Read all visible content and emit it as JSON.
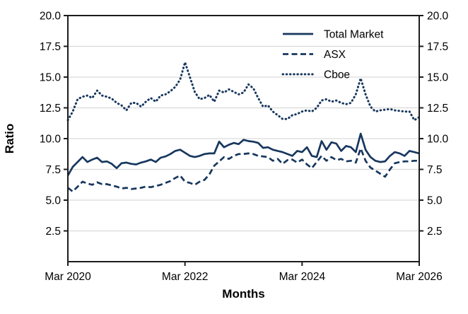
{
  "chart_data": {
    "type": "line",
    "title": "",
    "xlabel": "Months",
    "ylabel": "Ratio",
    "ylim": [
      0,
      20
    ],
    "x_range_months": [
      0,
      72
    ],
    "yticks": [
      2.5,
      5.0,
      7.5,
      10.0,
      12.5,
      15.0,
      17.5,
      20.0
    ],
    "ytick_labels": [
      "2.5",
      "5.0",
      "7.5",
      "10.0",
      "12.5",
      "15.0",
      "17.5",
      "20.0"
    ],
    "x_tick_positions": [
      0,
      24,
      48,
      72
    ],
    "x_tick_labels": [
      "Mar 2020",
      "Mar 2022",
      "Mar 2024",
      "Mar 2026"
    ],
    "grid": "horizontal",
    "legend_position": "upper-right-inside",
    "colors": {
      "line": "#17375e",
      "axis": "#1c1c1c",
      "grid": "#d9d9d9",
      "text": "#000000",
      "background": "#ffffff"
    },
    "series": [
      {
        "name": "Total Market",
        "style": "solid",
        "values": [
          7.0,
          7.7,
          8.1,
          8.5,
          8.1,
          8.3,
          8.45,
          8.1,
          8.15,
          7.95,
          7.6,
          8.0,
          8.05,
          7.95,
          7.9,
          8.05,
          8.15,
          8.3,
          8.1,
          8.45,
          8.55,
          8.75,
          9.0,
          9.1,
          8.85,
          8.6,
          8.5,
          8.6,
          8.75,
          8.8,
          8.8,
          9.75,
          9.3,
          9.5,
          9.65,
          9.55,
          9.9,
          9.8,
          9.75,
          9.65,
          9.25,
          9.3,
          9.1,
          9.0,
          8.9,
          8.75,
          8.6,
          9.0,
          8.9,
          9.3,
          8.6,
          8.5,
          9.8,
          9.1,
          9.7,
          9.6,
          9.0,
          9.4,
          9.3,
          8.9,
          10.4,
          9.1,
          8.5,
          8.2,
          8.1,
          8.15,
          8.6,
          8.9,
          8.8,
          8.6,
          9.0,
          8.9,
          8.8
        ]
      },
      {
        "name": "ASX",
        "style": "dashed",
        "values": [
          6.0,
          5.7,
          6.1,
          6.5,
          6.35,
          6.25,
          6.45,
          6.3,
          6.3,
          6.2,
          6.1,
          5.95,
          6.0,
          5.9,
          5.95,
          6.0,
          6.1,
          6.05,
          6.15,
          6.25,
          6.4,
          6.55,
          6.8,
          7.0,
          6.5,
          6.4,
          6.25,
          6.5,
          6.65,
          7.1,
          7.8,
          8.15,
          8.5,
          8.35,
          8.6,
          8.75,
          8.75,
          8.8,
          8.75,
          8.6,
          8.55,
          8.5,
          8.2,
          8.35,
          7.95,
          8.25,
          8.3,
          8.05,
          8.3,
          7.9,
          7.6,
          8.1,
          8.6,
          8.2,
          8.5,
          8.25,
          8.35,
          8.15,
          8.2,
          8.05,
          9.2,
          8.2,
          7.65,
          7.4,
          7.15,
          6.9,
          7.5,
          8.0,
          8.1,
          8.15,
          8.15,
          8.2,
          8.2
        ]
      },
      {
        "name": "Cboe",
        "style": "dotted",
        "values": [
          11.5,
          12.2,
          13.2,
          13.4,
          13.5,
          13.3,
          13.9,
          13.5,
          13.4,
          13.25,
          12.9,
          12.7,
          12.3,
          12.9,
          12.9,
          12.6,
          13.0,
          13.3,
          13.0,
          13.5,
          13.6,
          13.85,
          14.2,
          14.8,
          16.2,
          15.0,
          13.8,
          13.2,
          13.3,
          13.55,
          13.0,
          13.9,
          13.75,
          14.0,
          13.8,
          13.6,
          13.75,
          14.4,
          14.1,
          13.3,
          12.6,
          12.7,
          12.2,
          11.9,
          11.6,
          11.6,
          11.9,
          12.0,
          12.2,
          12.3,
          12.2,
          12.5,
          13.1,
          13.2,
          13.0,
          13.1,
          12.9,
          12.8,
          12.9,
          13.6,
          14.9,
          13.6,
          12.6,
          12.2,
          12.3,
          12.35,
          12.4,
          12.3,
          12.25,
          12.2,
          12.2,
          11.5,
          11.75
        ]
      }
    ]
  }
}
